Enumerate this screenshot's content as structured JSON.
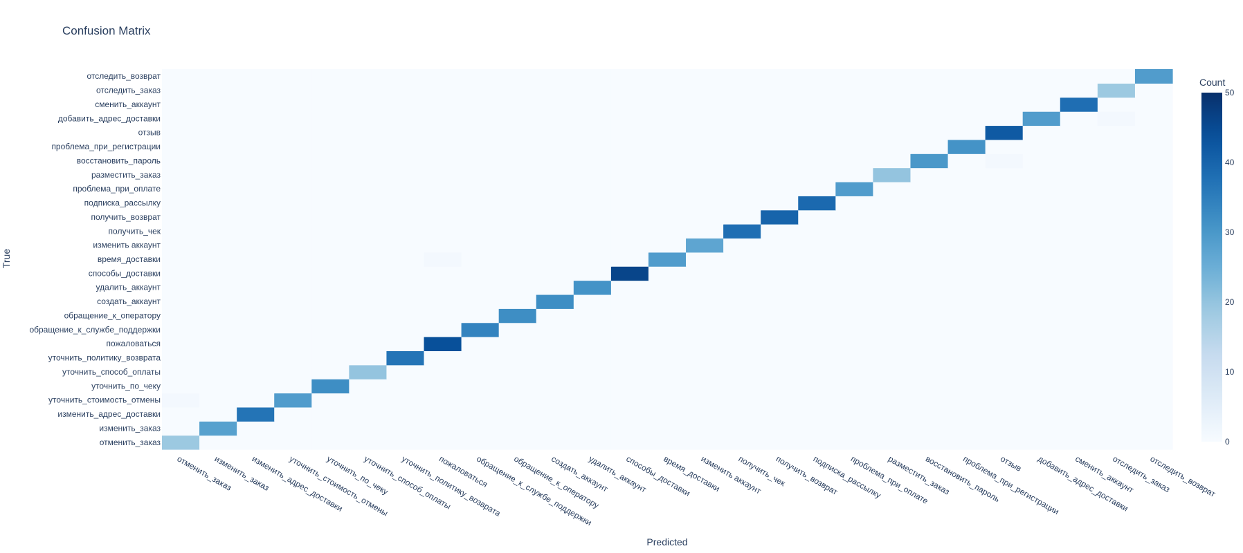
{
  "chart_data": {
    "type": "heatmap",
    "title": "Confusion Matrix",
    "xlabel": "Predicted",
    "ylabel": "True",
    "labels": [
      "отменить_заказ",
      "изменить_заказ",
      "изменить_адрес_доставки",
      "уточнить_стоимость_отмены",
      "уточнить_по_чеку",
      "уточнить_способ_оплаты",
      "уточнить_политику_возврата",
      "пожаловаться",
      "обращение_к_службе_поддержки",
      "обращение_к_оператору",
      "создать_аккаунт",
      "удалить_аккаунт",
      "способы_доставки",
      "время_доставки",
      "изменить аккаунт",
      "получить_чек",
      "получить_возврат",
      "подписка_рассылку",
      "проблема_при_оплате",
      "разместить_заказ",
      "восстановить_пароль",
      "проблема_при_регистрации",
      "отзыв",
      "добавить_адрес_доставки",
      "сменить_аккаунт",
      "отследить_заказ",
      "отследить_возврат"
    ],
    "diagonal": [
      19,
      28,
      37,
      29,
      32,
      20,
      37,
      44,
      34,
      32,
      32,
      31,
      46,
      29,
      27,
      38,
      40,
      39,
      29,
      20,
      30,
      31,
      42,
      29,
      38,
      19,
      29
    ],
    "off_diagonal": [
      {
        "true": "уточнить_стоимость_отмены",
        "predicted": "отменить_заказ",
        "value": 1
      },
      {
        "true": "время_доставки",
        "predicted": "пожаловаться",
        "value": 1
      },
      {
        "true": "восстановить_пароль",
        "predicted": "отзыв",
        "value": 1
      },
      {
        "true": "добавить_адрес_доставки",
        "predicted": "отследить_заказ",
        "value": 1
      }
    ],
    "colorscale": "Blues",
    "zmin": 0,
    "zmax": 50,
    "colorbar": {
      "title": "Count",
      "ticks": [
        0,
        10,
        20,
        30,
        40,
        50
      ]
    },
    "colors": {
      "low": "#f7fbff",
      "high": "#08306b",
      "text": "#2a3f5f"
    }
  }
}
